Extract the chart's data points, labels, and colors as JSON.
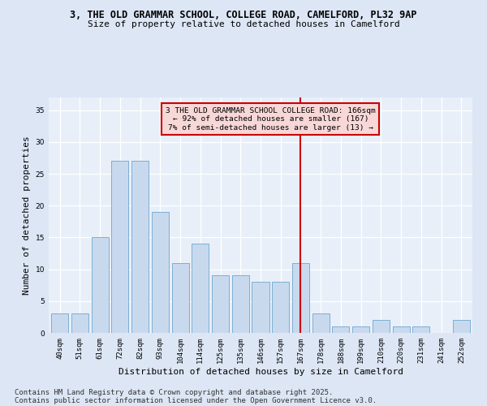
{
  "title_line1": "3, THE OLD GRAMMAR SCHOOL, COLLEGE ROAD, CAMELFORD, PL32 9AP",
  "title_line2": "Size of property relative to detached houses in Camelford",
  "xlabel": "Distribution of detached houses by size in Camelford",
  "ylabel": "Number of detached properties",
  "categories": [
    "40sqm",
    "51sqm",
    "61sqm",
    "72sqm",
    "82sqm",
    "93sqm",
    "104sqm",
    "114sqm",
    "125sqm",
    "135sqm",
    "146sqm",
    "157sqm",
    "167sqm",
    "178sqm",
    "188sqm",
    "199sqm",
    "210sqm",
    "220sqm",
    "231sqm",
    "241sqm",
    "252sqm"
  ],
  "values": [
    3,
    3,
    15,
    27,
    27,
    19,
    11,
    14,
    9,
    9,
    8,
    8,
    11,
    3,
    1,
    1,
    2,
    1,
    1,
    0,
    2
  ],
  "bar_color": "#c9d9ed",
  "bar_edge_color": "#7bafd4",
  "highlight_index": 12,
  "vline_color": "#cc0000",
  "annotation_title": "3 THE OLD GRAMMAR SCHOOL COLLEGE ROAD: 166sqm",
  "annotation_line2": "← 92% of detached houses are smaller (167)",
  "annotation_line3": "7% of semi-detached houses are larger (13) →",
  "annotation_box_facecolor": "#f8d7d7",
  "annotation_box_edge": "#cc0000",
  "ylim": [
    0,
    37
  ],
  "yticks": [
    0,
    5,
    10,
    15,
    20,
    25,
    30,
    35
  ],
  "bg_color": "#dce6f5",
  "plot_bg_color": "#e8eff9",
  "grid_color": "#ffffff",
  "title_fontsize": 8.5,
  "subtitle_fontsize": 8,
  "axis_label_fontsize": 8,
  "tick_fontsize": 6.5,
  "annotation_fontsize": 6.8,
  "footer_fontsize": 6.5,
  "footer_line1": "Contains HM Land Registry data © Crown copyright and database right 2025.",
  "footer_line2": "Contains public sector information licensed under the Open Government Licence v3.0."
}
